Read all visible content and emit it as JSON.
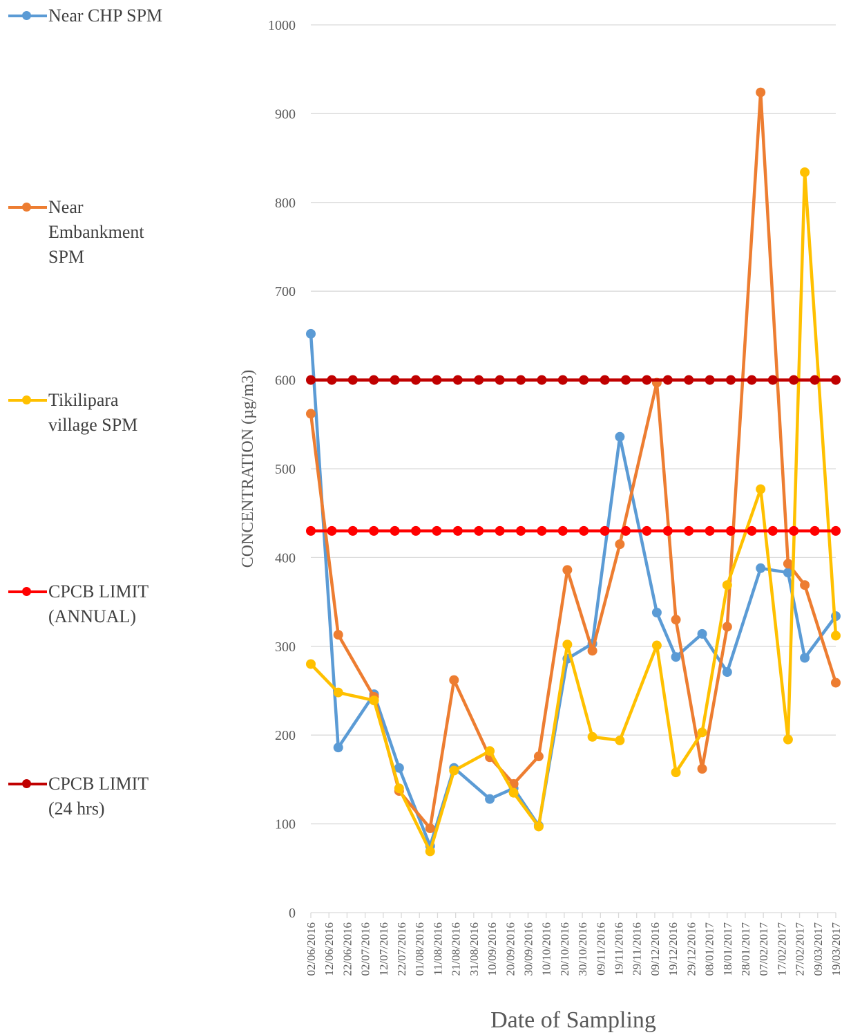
{
  "chart_data": {
    "type": "line",
    "xlabel": "Date of Sampling",
    "ylabel": "CONCENTRATION (µg/m3)",
    "ylim": [
      0,
      1000
    ],
    "yticks": [
      0,
      100,
      200,
      300,
      400,
      500,
      600,
      700,
      800,
      900,
      1000
    ],
    "grid": "horizontal",
    "legend_position": "left",
    "x_ticks": [
      "02/06/2016",
      "12/06/2016",
      "22/06/2016",
      "02/07/2016",
      "12/07/2016",
      "22/07/2016",
      "01/08/2016",
      "11/08/2016",
      "21/08/2016",
      "31/08/2016",
      "10/09/2016",
      "20/09/2016",
      "30/09/2016",
      "10/10/2016",
      "20/10/2016",
      "30/10/2016",
      "09/11/2016",
      "19/11/2016",
      "29/11/2016",
      "09/12/2016",
      "19/12/2016",
      "29/12/2016",
      "08/01/2017",
      "18/01/2017",
      "28/01/2017",
      "07/02/2017",
      "17/02/2017",
      "27/02/2017",
      "09/03/2017",
      "19/03/2017"
    ],
    "x_points": [
      "02/06/2016",
      "13/06/2016",
      "27/06/2016",
      "07/07/2016",
      "19/07/2016",
      "05/08/2016",
      "14/08/2016",
      "28/08/2016",
      "07/09/2016",
      "17/09/2016",
      "27/09/2016",
      "09/10/2016",
      "19/10/2016",
      "01/11/2016",
      "12/11/2016",
      "25/11/2016",
      "05/12/2016",
      "15/12/2016",
      "26/12/2016",
      "05/01/2017",
      "15/01/2017",
      "28/01/2017",
      "06/02/2017",
      "18/02/2017",
      "03/03/2017",
      "13/03/2017"
    ],
    "series": [
      {
        "name": "Near CHP SPM",
        "color": "#5B9BD5",
        "values": [
          652,
          186,
          246,
          163,
          75,
          163,
          128,
          140,
          98,
          286,
          303,
          536,
          338,
          288,
          314,
          271,
          388,
          383,
          287,
          334
        ]
      },
      {
        "name": "Near Embankment SPM",
        "color": "#ED7D31",
        "values": [
          562,
          313,
          243,
          137,
          95,
          262,
          175,
          145,
          176,
          386,
          295,
          415,
          597,
          330,
          162,
          322,
          924,
          393,
          369,
          259
        ]
      },
      {
        "name": "Tikilipara village SPM",
        "color": "#FFC000",
        "values": [
          280,
          248,
          239,
          140,
          69,
          160,
          182,
          135,
          97,
          302,
          198,
          194,
          301,
          158,
          203,
          369,
          477,
          195,
          834,
          312
        ]
      },
      {
        "name": "CPCB LIMIT (ANNUAL)",
        "color": "#FF0000",
        "constant": 430
      },
      {
        "name": "CPCB LIMIT (24 hrs)",
        "color": "#C00000",
        "constant": 600
      }
    ],
    "series_x_index": [
      0,
      1,
      3,
      4,
      6,
      7,
      9,
      10,
      11,
      13,
      15,
      16,
      18,
      20,
      21,
      22,
      24,
      26,
      27,
      29
    ],
    "limit_x_index": [
      0,
      1,
      2,
      3,
      4,
      5,
      6,
      7,
      8,
      9,
      10,
      11,
      12,
      13,
      14,
      15,
      16,
      17,
      18,
      19,
      20,
      21,
      22,
      23,
      24,
      25
    ]
  },
  "legend": [
    {
      "label": "Near CHP SPM",
      "color": "#5B9BD5"
    },
    {
      "label": "Near Embankment SPM",
      "color": "#ED7D31"
    },
    {
      "label": "Tikilipara village SPM",
      "color": "#FFC000"
    },
    {
      "label": "CPCB LIMIT (ANNUAL)",
      "color": "#FF0000"
    },
    {
      "label": "CPCB LIMIT (24 hrs)",
      "color": "#C00000"
    }
  ]
}
